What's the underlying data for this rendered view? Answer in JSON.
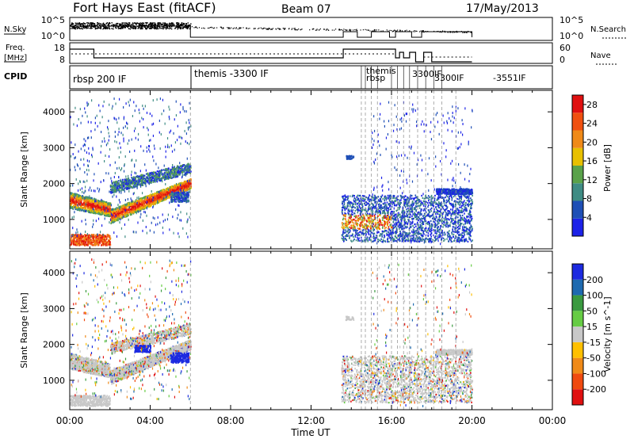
{
  "header": {
    "title": "Fort Hays East (fitACF)",
    "beam": "Beam 07",
    "date": "17/May/2013"
  },
  "noise_panel": {
    "left_label": "N.Sky",
    "right_label": "N.Search",
    "left_ticks": [
      "10^5",
      "10^0"
    ],
    "right_ticks": [
      "10^5",
      "10^0"
    ]
  },
  "freq_panel": {
    "left_label_line1": "Freq.",
    "left_label_line2": "[MHz]",
    "right_label": "Nave",
    "left_ticks": [
      "18",
      "8"
    ],
    "right_ticks": [
      "60",
      "0"
    ]
  },
  "cpid_panel": {
    "label": "CPID",
    "segments": [
      {
        "text": "rbsp 200 IF"
      },
      {
        "text": "themis -3300 IF"
      },
      {
        "text": "themis"
      },
      {
        "text": "rbsp"
      },
      {
        "text": "3300IF"
      },
      {
        "text": "3300IF"
      },
      {
        "text": "-3551IF"
      }
    ]
  },
  "colors": {
    "frame": "#000000",
    "power_scale": [
      "#1c22e8",
      "#1e4fb6",
      "#3f8c84",
      "#5aa24a",
      "#e8c000",
      "#f08a18",
      "#f05010",
      "#e01010"
    ],
    "velocity_scale": [
      "#e01010",
      "#f04a10",
      "#f08a18",
      "#ffc000",
      "#c8c8c8",
      "#66cc44",
      "#3a9a40",
      "#1e6ab0",
      "#1c2ae0"
    ]
  },
  "chart_data": [
    {
      "type": "heatmap",
      "name": "power",
      "xlabel": "Time UT",
      "ylabel": "Slant Range [km]",
      "x_ticks": [
        "00:00",
        "04:00",
        "08:00",
        "12:00",
        "16:00",
        "20:00",
        "00:00"
      ],
      "y_ticks": [
        1000,
        2000,
        3000,
        4000
      ],
      "xlim_hours": [
        0,
        24
      ],
      "ylim_km": [
        180,
        4600
      ],
      "colorbar": {
        "label": "Power [dB]",
        "ticks": [
          4,
          8,
          12,
          16,
          20,
          24,
          28
        ],
        "range": [
          0,
          30
        ]
      }
    },
    {
      "type": "heatmap",
      "name": "velocity",
      "xlabel": "Time UT",
      "ylabel": "Slant Range [km]",
      "x_ticks": [
        "00:00",
        "04:00",
        "08:00",
        "12:00",
        "16:00",
        "20:00",
        "00:00"
      ],
      "y_ticks": [
        1000,
        2000,
        3000,
        4000
      ],
      "xlim_hours": [
        0,
        24
      ],
      "ylim_km": [
        180,
        4600
      ],
      "colorbar": {
        "label": "Velocity [m s^-1]",
        "ticks": [
          200,
          100,
          50,
          15,
          -15,
          -50,
          -100,
          -200
        ]
      }
    }
  ],
  "x_axis_label": "Time UT"
}
